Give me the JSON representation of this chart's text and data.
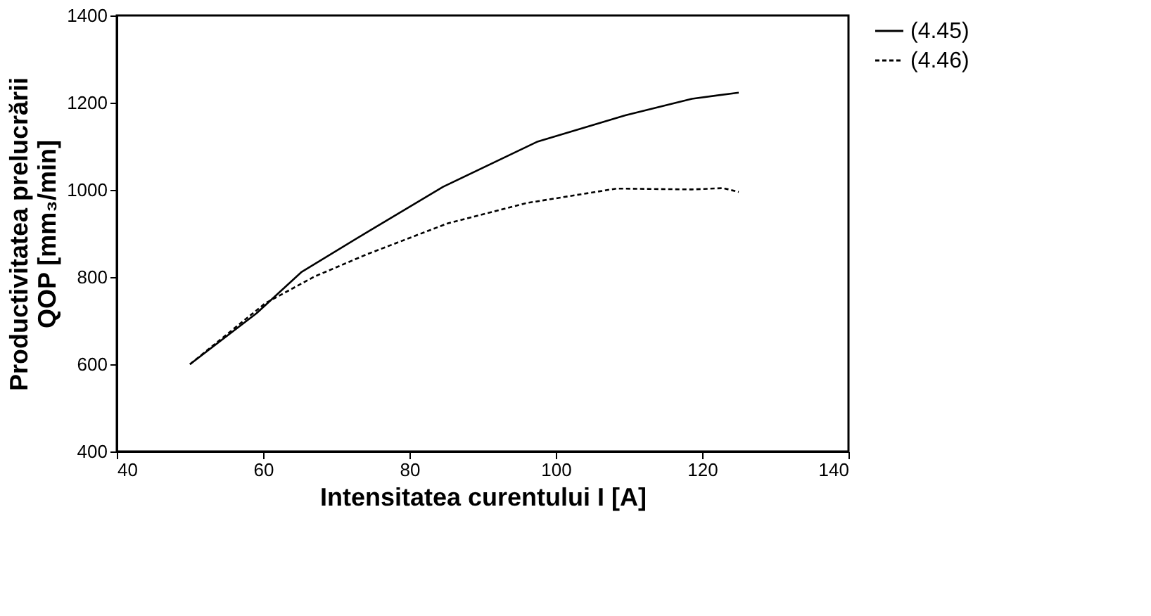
{
  "chart_data": {
    "type": "line",
    "xlabel": "Intensitatea curentului I [A]",
    "ylabel": "Productivitatea prelucrării\nQOP [mm₃/min]",
    "xlim": [
      40,
      140
    ],
    "xticks": [
      40,
      60,
      80,
      100,
      120,
      140
    ],
    "ylim": [
      400,
      1400
    ],
    "yticks": [
      400,
      600,
      800,
      1000,
      1200,
      1400
    ],
    "grid": false,
    "legend": "right",
    "marker": "none",
    "series": [
      {
        "name": "(4.45)",
        "color": "#000000",
        "line_style": "solid",
        "x": [
          50,
          59.1,
          65.2,
          74.3,
          84.6,
          97.4,
          109.5,
          118.6,
          125
        ],
        "values": [
          600,
          717,
          811,
          904,
          1007,
          1110,
          1171,
          1209,
          1223
        ]
      },
      {
        "name": "(4.46)",
        "color": "#000000",
        "line_style": "dashed",
        "x": [
          50,
          60.3,
          67,
          74.3,
          85.2,
          96.1,
          108.3,
          118.6,
          122.9,
          125
        ],
        "values": [
          600,
          740,
          801,
          853,
          923,
          970,
          1003,
          1001,
          1004,
          995
        ]
      }
    ]
  }
}
